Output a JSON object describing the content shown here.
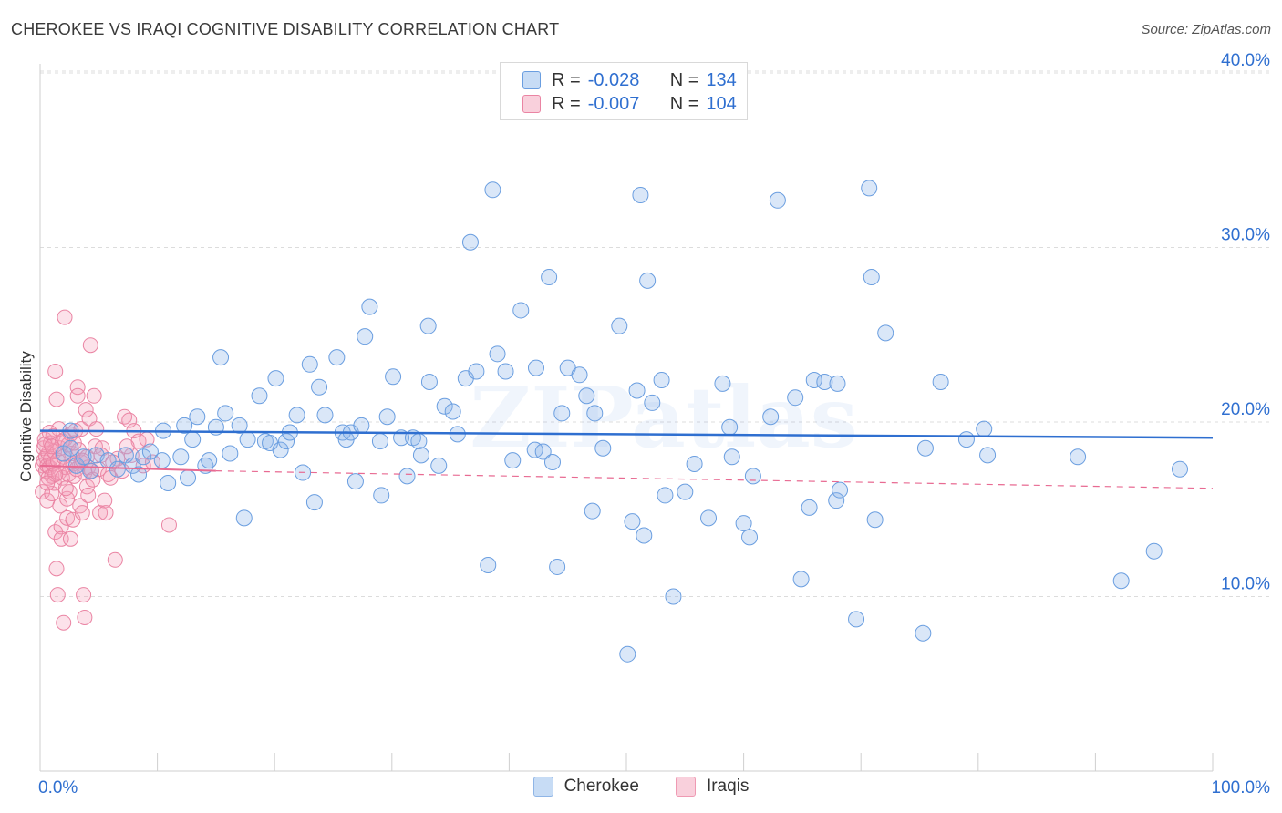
{
  "header": {
    "title": "CHEROKEE VS IRAQI COGNITIVE DISABILITY CORRELATION CHART",
    "source": "Source: ZipAtlas.com"
  },
  "watermark": "ZIPatlas",
  "legend_top": {
    "rows": [
      {
        "r_label": "R =",
        "r_value": "-0.028",
        "n_label": "N =",
        "n_value": "134",
        "color": "#9ec2ee",
        "border": "#6a9ee0"
      },
      {
        "r_label": "R =",
        "r_value": "-0.007",
        "n_label": "N =",
        "n_value": "104",
        "color": "#f6b6c8",
        "border": "#ea84a3"
      }
    ]
  },
  "legend_bottom": {
    "items": [
      {
        "label": "Cherokee",
        "color": "#c7dcf5",
        "border": "#8fb5e6"
      },
      {
        "label": "Iraqis",
        "color": "#f9d0dc",
        "border": "#ef9ab3"
      }
    ]
  },
  "colors": {
    "cherokee_fill": "rgba(140,180,232,0.32)",
    "cherokee_stroke": "#6a9ee0",
    "cherokee_trend": "#2f6fd0",
    "iraqi_fill": "rgba(244,160,186,0.30)",
    "iraqi_stroke": "#ea84a3",
    "iraqi_trend": "#e86a92",
    "axis_text": "#2f6fd0",
    "grid": "#dcdcdc"
  },
  "chart_data": {
    "type": "scatter",
    "title": "CHEROKEE VS IRAQI COGNITIVE DISABILITY CORRELATION CHART",
    "xlabel": "",
    "ylabel": "Cognitive Disability",
    "xlim": [
      0,
      100
    ],
    "ylim": [
      0,
      42
    ],
    "x_tick_labels": [
      "0.0%",
      "100.0%"
    ],
    "y_ticks": [
      10,
      20,
      30,
      40
    ],
    "y_tick_labels": [
      "10.0%",
      "20.0%",
      "30.0%",
      "40.0%"
    ],
    "grid": true,
    "legend_position": "top-center",
    "series": [
      {
        "name": "Cherokee",
        "r": -0.028,
        "n": 134,
        "trend": {
          "x": [
            0,
            100
          ],
          "y": [
            19.5,
            19.1
          ]
        },
        "points": [
          [
            2.0,
            18.2
          ],
          [
            2.6,
            18.5
          ],
          [
            2.6,
            19.5
          ],
          [
            3.1,
            17.5
          ],
          [
            3.7,
            18.0
          ],
          [
            4.3,
            17.2
          ],
          [
            4.8,
            18.1
          ],
          [
            5.8,
            17.8
          ],
          [
            6.6,
            17.3
          ],
          [
            7.3,
            18.1
          ],
          [
            7.9,
            17.5
          ],
          [
            8.4,
            17.0
          ],
          [
            8.8,
            18.0
          ],
          [
            9.4,
            18.3
          ],
          [
            10.4,
            17.8
          ],
          [
            10.5,
            19.5
          ],
          [
            10.9,
            16.5
          ],
          [
            12.0,
            18.0
          ],
          [
            12.3,
            19.8
          ],
          [
            12.6,
            16.8
          ],
          [
            13.0,
            19.0
          ],
          [
            13.4,
            20.3
          ],
          [
            14.1,
            17.5
          ],
          [
            14.4,
            17.8
          ],
          [
            15.0,
            19.7
          ],
          [
            15.4,
            23.7
          ],
          [
            15.8,
            20.5
          ],
          [
            16.2,
            18.2
          ],
          [
            17.0,
            19.8
          ],
          [
            17.4,
            14.5
          ],
          [
            17.7,
            19.0
          ],
          [
            18.7,
            21.5
          ],
          [
            19.2,
            18.9
          ],
          [
            19.6,
            18.8
          ],
          [
            20.1,
            22.5
          ],
          [
            20.5,
            18.4
          ],
          [
            21.0,
            18.9
          ],
          [
            21.3,
            19.4
          ],
          [
            21.9,
            20.4
          ],
          [
            22.4,
            17.1
          ],
          [
            23.0,
            23.3
          ],
          [
            23.4,
            15.4
          ],
          [
            23.8,
            22.0
          ],
          [
            24.3,
            20.4
          ],
          [
            25.3,
            23.7
          ],
          [
            25.8,
            19.4
          ],
          [
            26.1,
            19.0
          ],
          [
            26.5,
            19.4
          ],
          [
            26.9,
            16.6
          ],
          [
            27.4,
            19.8
          ],
          [
            27.7,
            24.9
          ],
          [
            28.1,
            26.6
          ],
          [
            29.0,
            18.9
          ],
          [
            29.1,
            15.8
          ],
          [
            29.6,
            20.3
          ],
          [
            30.1,
            22.6
          ],
          [
            30.8,
            19.1
          ],
          [
            31.3,
            16.9
          ],
          [
            31.8,
            19.1
          ],
          [
            32.3,
            18.9
          ],
          [
            32.5,
            18.1
          ],
          [
            33.1,
            25.5
          ],
          [
            33.2,
            22.3
          ],
          [
            34.5,
            20.9
          ],
          [
            35.2,
            20.6
          ],
          [
            35.6,
            19.3
          ],
          [
            36.3,
            22.5
          ],
          [
            36.7,
            30.3
          ],
          [
            37.2,
            22.9
          ],
          [
            38.2,
            11.8
          ],
          [
            38.6,
            33.3
          ],
          [
            39.0,
            23.9
          ],
          [
            39.7,
            22.9
          ],
          [
            40.3,
            17.8
          ],
          [
            41.0,
            26.4
          ],
          [
            42.2,
            18.4
          ],
          [
            42.3,
            23.1
          ],
          [
            42.9,
            18.3
          ],
          [
            43.4,
            28.3
          ],
          [
            43.7,
            17.7
          ],
          [
            44.1,
            11.7
          ],
          [
            45.0,
            23.1
          ],
          [
            46.0,
            22.7
          ],
          [
            46.6,
            21.5
          ],
          [
            47.1,
            14.9
          ],
          [
            47.3,
            20.5
          ],
          [
            49.4,
            25.5
          ],
          [
            50.1,
            6.7
          ],
          [
            50.5,
            14.3
          ],
          [
            50.9,
            21.8
          ],
          [
            51.2,
            33.0
          ],
          [
            51.5,
            13.5
          ],
          [
            51.8,
            28.1
          ],
          [
            52.2,
            21.1
          ],
          [
            53.0,
            22.4
          ],
          [
            53.3,
            15.8
          ],
          [
            54.0,
            10.0
          ],
          [
            55.0,
            16.0
          ],
          [
            55.8,
            17.6
          ],
          [
            58.2,
            22.2
          ],
          [
            58.8,
            19.7
          ],
          [
            59.0,
            18.0
          ],
          [
            60.0,
            14.2
          ],
          [
            60.5,
            13.4
          ],
          [
            60.8,
            16.9
          ],
          [
            62.3,
            20.3
          ],
          [
            62.9,
            32.7
          ],
          [
            64.4,
            21.4
          ],
          [
            64.9,
            11.0
          ],
          [
            65.6,
            15.1
          ],
          [
            66.0,
            22.4
          ],
          [
            66.9,
            22.3
          ],
          [
            67.9,
            15.5
          ],
          [
            68.2,
            16.1
          ],
          [
            69.6,
            8.7
          ],
          [
            70.7,
            33.4
          ],
          [
            70.9,
            28.3
          ],
          [
            71.2,
            14.4
          ],
          [
            72.1,
            25.1
          ],
          [
            75.3,
            7.9
          ],
          [
            75.5,
            18.5
          ],
          [
            76.8,
            22.3
          ],
          [
            79.0,
            19.0
          ],
          [
            80.5,
            19.6
          ],
          [
            80.8,
            18.1
          ],
          [
            88.5,
            18.0
          ],
          [
            92.2,
            10.9
          ],
          [
            95.0,
            12.6
          ],
          [
            97.2,
            17.3
          ],
          [
            68.0,
            22.2
          ],
          [
            34.0,
            17.5
          ],
          [
            44.5,
            20.5
          ],
          [
            57.0,
            14.5
          ],
          [
            48.0,
            18.5
          ]
        ]
      },
      {
        "name": "Iraqis",
        "r": -0.007,
        "n": 104,
        "trend": {
          "x": [
            0,
            15
          ],
          "y": [
            17.5,
            17.2
          ]
        },
        "trend_dashed": {
          "x": [
            15,
            100
          ],
          "y": [
            17.2,
            16.2
          ]
        },
        "points": [
          [
            0.2,
            17.5
          ],
          [
            0.2,
            16.0
          ],
          [
            0.3,
            18.5
          ],
          [
            0.3,
            17.8
          ],
          [
            0.4,
            19.0
          ],
          [
            0.5,
            18.0
          ],
          [
            0.5,
            17.2
          ],
          [
            0.6,
            17.5
          ],
          [
            0.6,
            15.5
          ],
          [
            0.7,
            18.2
          ],
          [
            0.7,
            16.8
          ],
          [
            0.8,
            17.4
          ],
          [
            0.9,
            18.8
          ],
          [
            0.9,
            17.9
          ],
          [
            1.0,
            16.9
          ],
          [
            1.0,
            15.9
          ],
          [
            1.1,
            17.6
          ],
          [
            1.1,
            19.2
          ],
          [
            1.2,
            18.3
          ],
          [
            1.2,
            16.5
          ],
          [
            1.3,
            13.7
          ],
          [
            1.3,
            22.9
          ],
          [
            1.4,
            21.3
          ],
          [
            1.4,
            11.6
          ],
          [
            1.5,
            10.1
          ],
          [
            1.5,
            17.8
          ],
          [
            1.6,
            19.6
          ],
          [
            1.6,
            17.1
          ],
          [
            1.7,
            18.5
          ],
          [
            1.7,
            15.2
          ],
          [
            1.8,
            14.0
          ],
          [
            1.8,
            13.3
          ],
          [
            1.9,
            16.8
          ],
          [
            2.0,
            18.0
          ],
          [
            2.0,
            8.5
          ],
          [
            2.1,
            26.0
          ],
          [
            2.1,
            19.0
          ],
          [
            2.2,
            17.4
          ],
          [
            2.3,
            15.6
          ],
          [
            2.3,
            14.5
          ],
          [
            2.4,
            18.7
          ],
          [
            2.4,
            17.0
          ],
          [
            2.5,
            16.0
          ],
          [
            2.6,
            19.3
          ],
          [
            2.6,
            13.3
          ],
          [
            2.7,
            18.2
          ],
          [
            2.8,
            17.6
          ],
          [
            2.8,
            14.4
          ],
          [
            2.9,
            16.9
          ],
          [
            3.0,
            19.5
          ],
          [
            3.1,
            17.3
          ],
          [
            3.2,
            22.0
          ],
          [
            3.2,
            21.5
          ],
          [
            3.3,
            18.4
          ],
          [
            3.4,
            15.2
          ],
          [
            3.5,
            17.7
          ],
          [
            3.5,
            19.6
          ],
          [
            3.6,
            14.8
          ],
          [
            3.7,
            10.1
          ],
          [
            3.8,
            8.8
          ],
          [
            3.8,
            17.1
          ],
          [
            3.9,
            20.7
          ],
          [
            4.0,
            18.0
          ],
          [
            4.0,
            16.3
          ],
          [
            4.1,
            17.4
          ],
          [
            4.2,
            20.2
          ],
          [
            4.3,
            24.4
          ],
          [
            4.4,
            17.2
          ],
          [
            4.5,
            16.7
          ],
          [
            4.6,
            21.5
          ],
          [
            4.7,
            18.6
          ],
          [
            4.8,
            19.6
          ],
          [
            5.0,
            17.3
          ],
          [
            5.1,
            14.8
          ],
          [
            5.3,
            18.5
          ],
          [
            5.5,
            15.5
          ],
          [
            5.6,
            14.8
          ],
          [
            5.8,
            17.0
          ],
          [
            6.0,
            16.8
          ],
          [
            6.4,
            12.1
          ],
          [
            6.6,
            17.9
          ],
          [
            7.0,
            17.2
          ],
          [
            7.2,
            20.3
          ],
          [
            7.6,
            20.1
          ],
          [
            7.8,
            18.1
          ],
          [
            8.0,
            19.5
          ],
          [
            8.4,
            18.9
          ],
          [
            8.8,
            17.5
          ],
          [
            9.1,
            19.0
          ],
          [
            9.6,
            17.7
          ],
          [
            11.0,
            14.1
          ],
          [
            0.4,
            18.7
          ],
          [
            0.8,
            19.4
          ],
          [
            1.3,
            17.0
          ],
          [
            1.9,
            18.9
          ],
          [
            2.2,
            16.2
          ],
          [
            0.6,
            16.5
          ],
          [
            1.0,
            18.6
          ],
          [
            2.9,
            18.8
          ],
          [
            3.6,
            17.8
          ],
          [
            4.1,
            15.8
          ],
          [
            5.2,
            18.1
          ],
          [
            6.2,
            17.7
          ],
          [
            7.4,
            18.6
          ]
        ]
      }
    ]
  }
}
